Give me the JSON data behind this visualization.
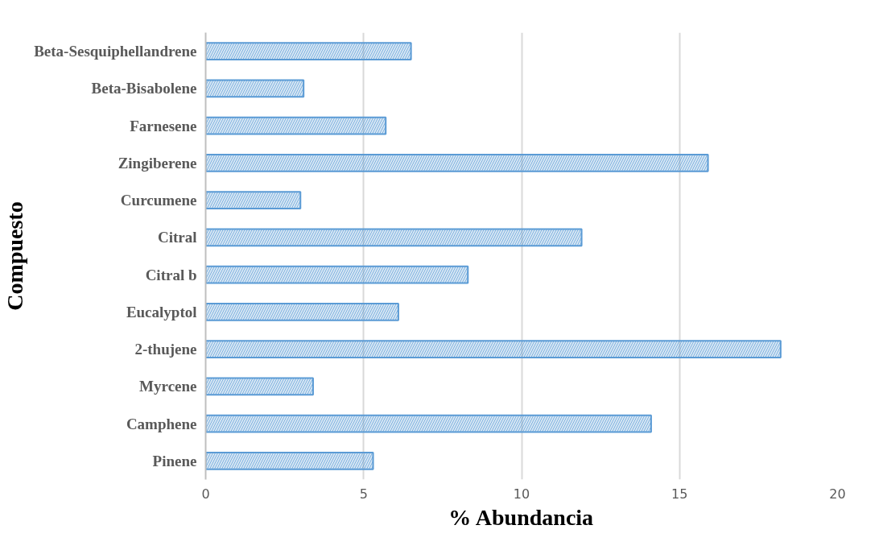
{
  "chart_data": {
    "type": "bar",
    "orientation": "horizontal",
    "xlabel": "% Abundancia",
    "ylabel": "Compuesto",
    "categories": [
      "Beta-Sesquiphellandrene",
      "Beta-Bisabolene",
      "Farnesene",
      "Zingiberene",
      "Curcumene",
      "Citral",
      "Citral b",
      "Eucalyptol",
      "2-thujene",
      "Myrcene",
      "Camphene",
      "Pinene"
    ],
    "values": [
      6.5,
      3.1,
      5.7,
      15.9,
      3.0,
      11.9,
      8.3,
      6.1,
      18.2,
      3.4,
      14.1,
      5.3
    ],
    "color": "#5b9bd5",
    "xlim": [
      0,
      20
    ],
    "xticks": [
      0,
      5,
      10,
      15,
      20
    ],
    "grid": "x"
  }
}
